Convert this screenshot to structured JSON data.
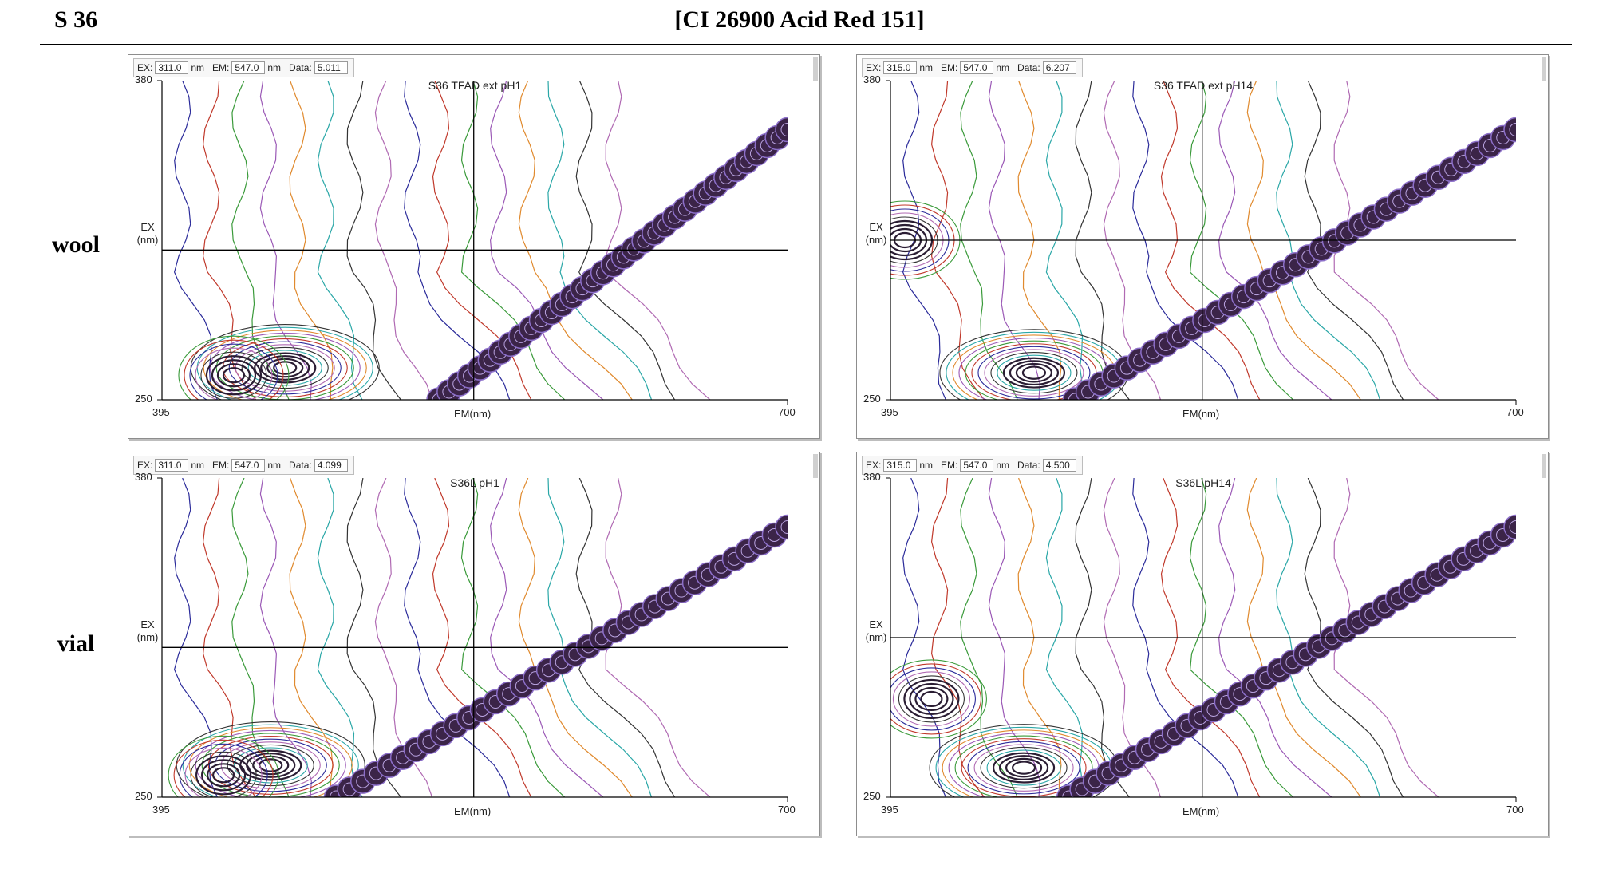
{
  "header": {
    "sample_id": "S 36",
    "title": "[CI 26900 Acid Red 151]"
  },
  "rows": [
    {
      "label": "wool"
    },
    {
      "label": "vial"
    }
  ],
  "panels": [
    {
      "status": {
        "ex_label": "EX:",
        "ex": "311.0",
        "ex_unit": "nm",
        "em_label": "EM:",
        "em": "547.0",
        "em_unit": "nm",
        "data_label": "Data:",
        "data": "5.011"
      }
    },
    {
      "status": {
        "ex_label": "EX:",
        "ex": "315.0",
        "ex_unit": "nm",
        "em_label": "EM:",
        "em": "547.0",
        "em_unit": "nm",
        "data_label": "Data:",
        "data": "6.207"
      }
    },
    {
      "status": {
        "ex_label": "EX:",
        "ex": "311.0",
        "ex_unit": "nm",
        "em_label": "EM:",
        "em": "547.0",
        "em_unit": "nm",
        "data_label": "Data:",
        "data": "4.099"
      }
    },
    {
      "status": {
        "ex_label": "EX:",
        "ex": "315.0",
        "ex_unit": "nm",
        "em_label": "EM:",
        "em": "547.0",
        "em_unit": "nm",
        "data_label": "Data:",
        "data": "4.500"
      }
    }
  ],
  "chart_data": [
    {
      "type": "contour",
      "title": "S36 TFAD ext pH1",
      "xlabel": "EM(nm)",
      "ylabel": "EX\n(nm)",
      "xlim": [
        395,
        700
      ],
      "ylim": [
        250,
        380
      ],
      "x_ticks": [
        "395",
        "700"
      ],
      "y_ticks": [
        "380",
        "250"
      ],
      "crosshair": {
        "em": 547,
        "ex": 311
      },
      "rayleigh_band": {
        "em_start": 530,
        "ex_start": 250,
        "em_end": 700,
        "ex_end": 360
      },
      "peaks": [
        {
          "em": 455,
          "ex": 263
        },
        {
          "em": 430,
          "ex": 260
        }
      ]
    },
    {
      "type": "contour",
      "title": "S36 TFAD ext pH14",
      "xlabel": "EM(nm)",
      "ylabel": "EX\n(nm)",
      "xlim": [
        395,
        700
      ],
      "ylim": [
        250,
        380
      ],
      "x_ticks": [
        "395",
        "700"
      ],
      "y_ticks": [
        "380",
        "250"
      ],
      "crosshair": {
        "em": 547,
        "ex": 315
      },
      "rayleigh_band": {
        "em_start": 485,
        "ex_start": 250,
        "em_end": 700,
        "ex_end": 360
      },
      "peaks": [
        {
          "em": 465,
          "ex": 261
        },
        {
          "em": 402,
          "ex": 315
        }
      ]
    },
    {
      "type": "contour",
      "title": "S36L pH1",
      "xlabel": "EM(nm)",
      "ylabel": "EX\n(nm)",
      "xlim": [
        395,
        700
      ],
      "ylim": [
        250,
        380
      ],
      "x_ticks": [
        "395",
        "700"
      ],
      "y_ticks": [
        "380",
        "250"
      ],
      "crosshair": {
        "em": 547,
        "ex": 311
      },
      "rayleigh_band": {
        "em_start": 480,
        "ex_start": 250,
        "em_end": 700,
        "ex_end": 360
      },
      "peaks": [
        {
          "em": 448,
          "ex": 263
        },
        {
          "em": 425,
          "ex": 259
        }
      ]
    },
    {
      "type": "contour",
      "title": "S36L pH14",
      "xlabel": "EM(nm)",
      "ylabel": "EX\n(nm)",
      "xlim": [
        395,
        700
      ],
      "ylim": [
        250,
        380
      ],
      "x_ticks": [
        "395",
        "700"
      ],
      "y_ticks": [
        "380",
        "250"
      ],
      "crosshair": {
        "em": 547,
        "ex": 315
      },
      "rayleigh_band": {
        "em_start": 482,
        "ex_start": 250,
        "em_end": 700,
        "ex_end": 360
      },
      "peaks": [
        {
          "em": 460,
          "ex": 262
        },
        {
          "em": 415,
          "ex": 290
        }
      ]
    }
  ],
  "colors": {
    "contours": [
      "#2b2b9a",
      "#c0392b",
      "#3a9a3a",
      "#9b59b6",
      "#e08a2e",
      "#2aa7a7",
      "#333333",
      "#b06ab3"
    ],
    "band": "#3b2448",
    "band_highlight": "#8c6fc9",
    "crosshair": "#000000"
  }
}
